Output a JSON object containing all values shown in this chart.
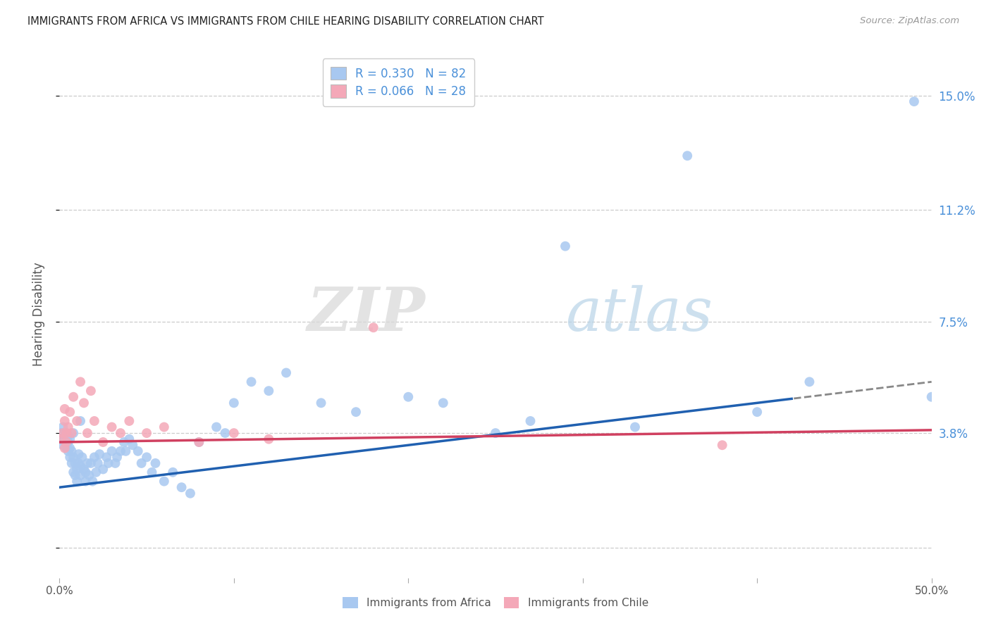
{
  "title": "IMMIGRANTS FROM AFRICA VS IMMIGRANTS FROM CHILE HEARING DISABILITY CORRELATION CHART",
  "source": "Source: ZipAtlas.com",
  "ylabel": "Hearing Disability",
  "yticks": [
    0.0,
    0.038,
    0.075,
    0.112,
    0.15
  ],
  "ytick_labels": [
    "",
    "3.8%",
    "7.5%",
    "11.2%",
    "15.0%"
  ],
  "xlim": [
    0.0,
    0.5
  ],
  "ylim": [
    -0.01,
    0.165
  ],
  "background_color": "#ffffff",
  "series1_color": "#a8c8f0",
  "series2_color": "#f4a8b8",
  "line1_color": "#2060b0",
  "line2_color": "#d04060",
  "text_color_blue": "#4a90d9",
  "text_color_gray": "#555555",
  "R1": 0.33,
  "N1": 82,
  "R2": 0.066,
  "N2": 28,
  "line1_intercept": 0.02,
  "line1_slope": 0.07,
  "line2_intercept": 0.035,
  "line2_slope": 0.008,
  "line1_solid_end": 0.42,
  "africa_x": [
    0.001,
    0.001,
    0.002,
    0.002,
    0.003,
    0.003,
    0.003,
    0.004,
    0.004,
    0.004,
    0.005,
    0.005,
    0.005,
    0.006,
    0.006,
    0.006,
    0.007,
    0.007,
    0.008,
    0.008,
    0.009,
    0.009,
    0.01,
    0.01,
    0.011,
    0.011,
    0.012,
    0.012,
    0.013,
    0.014,
    0.015,
    0.015,
    0.016,
    0.017,
    0.018,
    0.019,
    0.02,
    0.021,
    0.022,
    0.023,
    0.025,
    0.027,
    0.028,
    0.03,
    0.032,
    0.033,
    0.035,
    0.037,
    0.038,
    0.04,
    0.042,
    0.045,
    0.047,
    0.05,
    0.053,
    0.055,
    0.06,
    0.065,
    0.07,
    0.075,
    0.08,
    0.09,
    0.095,
    0.1,
    0.11,
    0.12,
    0.13,
    0.15,
    0.17,
    0.2,
    0.22,
    0.25,
    0.27,
    0.29,
    0.33,
    0.36,
    0.4,
    0.43,
    0.49,
    0.5,
    0.008,
    0.012
  ],
  "africa_y": [
    0.036,
    0.038,
    0.034,
    0.04,
    0.035,
    0.036,
    0.037,
    0.033,
    0.036,
    0.038,
    0.032,
    0.035,
    0.037,
    0.03,
    0.033,
    0.036,
    0.028,
    0.032,
    0.025,
    0.03,
    0.024,
    0.028,
    0.022,
    0.026,
    0.028,
    0.031,
    0.024,
    0.027,
    0.03,
    0.026,
    0.022,
    0.025,
    0.028,
    0.024,
    0.028,
    0.022,
    0.03,
    0.025,
    0.028,
    0.031,
    0.026,
    0.03,
    0.028,
    0.032,
    0.028,
    0.03,
    0.032,
    0.035,
    0.032,
    0.036,
    0.034,
    0.032,
    0.028,
    0.03,
    0.025,
    0.028,
    0.022,
    0.025,
    0.02,
    0.018,
    0.035,
    0.04,
    0.038,
    0.048,
    0.055,
    0.052,
    0.058,
    0.048,
    0.045,
    0.05,
    0.048,
    0.038,
    0.042,
    0.1,
    0.04,
    0.13,
    0.045,
    0.055,
    0.148,
    0.05,
    0.038,
    0.042
  ],
  "chile_x": [
    0.001,
    0.002,
    0.003,
    0.003,
    0.004,
    0.004,
    0.005,
    0.006,
    0.007,
    0.008,
    0.01,
    0.012,
    0.014,
    0.016,
    0.018,
    0.02,
    0.025,
    0.03,
    0.035,
    0.04,
    0.05,
    0.06,
    0.08,
    0.1,
    0.12,
    0.18,
    0.38,
    0.003
  ],
  "chile_y": [
    0.036,
    0.038,
    0.033,
    0.042,
    0.038,
    0.035,
    0.04,
    0.045,
    0.038,
    0.05,
    0.042,
    0.055,
    0.048,
    0.038,
    0.052,
    0.042,
    0.035,
    0.04,
    0.038,
    0.042,
    0.038,
    0.04,
    0.035,
    0.038,
    0.036,
    0.073,
    0.034,
    0.046
  ]
}
